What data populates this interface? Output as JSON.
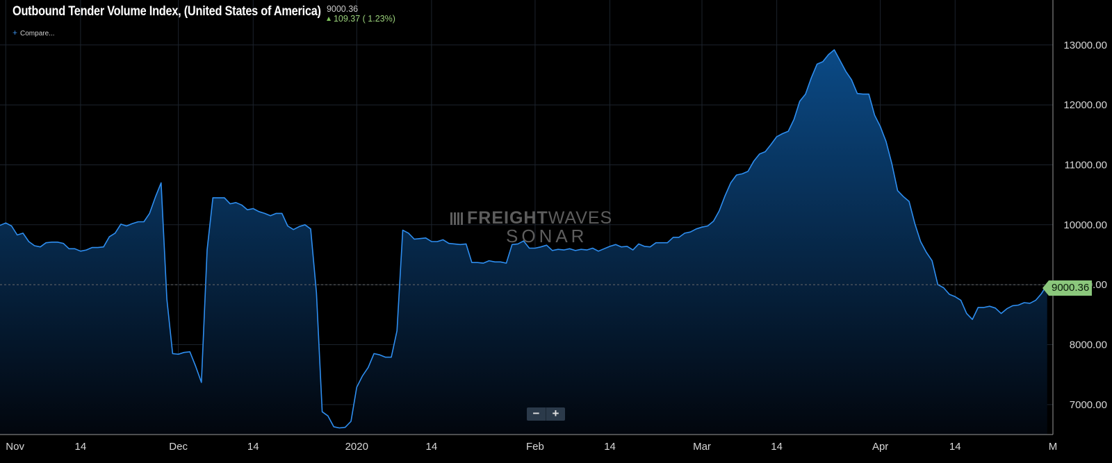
{
  "header": {
    "title": "Outbound Tender Volume Index, (United States of America)",
    "last_value": "9000.36",
    "change": "109.37 ( 1.23%)",
    "compare_label": "Compare..."
  },
  "watermark": {
    "brand_bold": "FREIGHT",
    "brand_thin": "WAVES",
    "product": "SONAR"
  },
  "price_tag": "9000.36",
  "zoom": {
    "minus": "−",
    "plus": "+"
  },
  "colors": {
    "line": "#2e8ef0",
    "fill_top": "#0b4a86",
    "fill_bottom": "#02060d",
    "grid": "#1c232c",
    "price_tag": "#8bc77c"
  },
  "chart_data": {
    "type": "area",
    "title": "Outbound Tender Volume Index, (United States of America)",
    "x_start": "2019-10-31",
    "x_end": "2020-05-01",
    "ylim": [
      6500,
      13750
    ],
    "grid": true,
    "y_ticks": [
      7000,
      8000,
      9000,
      10000,
      11000,
      12000,
      13000
    ],
    "y_tick_labels": [
      "7000.00",
      "8000.00",
      "9000.00",
      "10000.00",
      "11000.00",
      "12000.00",
      "13000.00"
    ],
    "x_ticks": [
      {
        "date": "2019-11-01",
        "label": "Nov"
      },
      {
        "date": "2019-11-14",
        "label": "14"
      },
      {
        "date": "2019-12-01",
        "label": "Dec"
      },
      {
        "date": "2019-12-14",
        "label": "14"
      },
      {
        "date": "2020-01-01",
        "label": "2020"
      },
      {
        "date": "2020-01-14",
        "label": "14"
      },
      {
        "date": "2020-02-01",
        "label": "Feb"
      },
      {
        "date": "2020-02-14",
        "label": "14"
      },
      {
        "date": "2020-03-01",
        "label": "Mar"
      },
      {
        "date": "2020-03-14",
        "label": "14"
      },
      {
        "date": "2020-04-01",
        "label": "Apr"
      },
      {
        "date": "2020-04-14",
        "label": "14"
      },
      {
        "date": "2020-05-01",
        "label": "M"
      }
    ],
    "last_value": 9000.36,
    "series": [
      {
        "x": [
          "2019-10-31",
          "2019-11-01",
          "2019-11-02",
          "2019-11-03",
          "2019-11-04",
          "2019-11-05",
          "2019-11-06",
          "2019-11-07",
          "2019-11-08",
          "2019-11-09",
          "2019-11-10",
          "2019-11-11",
          "2019-11-12",
          "2019-11-13",
          "2019-11-14",
          "2019-11-15",
          "2019-11-16",
          "2019-11-17",
          "2019-11-18",
          "2019-11-19",
          "2019-11-20",
          "2019-11-21",
          "2019-11-22",
          "2019-11-23",
          "2019-11-24",
          "2019-11-25",
          "2019-11-26",
          "2019-11-27",
          "2019-11-28",
          "2019-11-29",
          "2019-11-30",
          "2019-12-01",
          "2019-12-02",
          "2019-12-03",
          "2019-12-04",
          "2019-12-05",
          "2019-12-06",
          "2019-12-07",
          "2019-12-08",
          "2019-12-09",
          "2019-12-10",
          "2019-12-11",
          "2019-12-12",
          "2019-12-13",
          "2019-12-14",
          "2019-12-15",
          "2019-12-16",
          "2019-12-17",
          "2019-12-18",
          "2019-12-19",
          "2019-12-20",
          "2019-12-21",
          "2019-12-22",
          "2019-12-23",
          "2019-12-24",
          "2019-12-25",
          "2019-12-26",
          "2019-12-27",
          "2019-12-28",
          "2019-12-29",
          "2019-12-30",
          "2019-12-31",
          "2020-01-01",
          "2020-01-02",
          "2020-01-03",
          "2020-01-04",
          "2020-01-05",
          "2020-01-06",
          "2020-01-07",
          "2020-01-08",
          "2020-01-09",
          "2020-01-10",
          "2020-01-11",
          "2020-01-12",
          "2020-01-13",
          "2020-01-14",
          "2020-01-15",
          "2020-01-16",
          "2020-01-17",
          "2020-01-18",
          "2020-01-19",
          "2020-01-20",
          "2020-01-21",
          "2020-01-22",
          "2020-01-23",
          "2020-01-24",
          "2020-01-25",
          "2020-01-26",
          "2020-01-27",
          "2020-01-28",
          "2020-01-29",
          "2020-01-30",
          "2020-01-31",
          "2020-02-01",
          "2020-02-02",
          "2020-02-03",
          "2020-02-04",
          "2020-02-05",
          "2020-02-06",
          "2020-02-07",
          "2020-02-08",
          "2020-02-09",
          "2020-02-10",
          "2020-02-11",
          "2020-02-12",
          "2020-02-13",
          "2020-02-14",
          "2020-02-15",
          "2020-02-16",
          "2020-02-17",
          "2020-02-18",
          "2020-02-19",
          "2020-02-20",
          "2020-02-21",
          "2020-02-22",
          "2020-02-23",
          "2020-02-24",
          "2020-02-25",
          "2020-02-26",
          "2020-02-27",
          "2020-02-28",
          "2020-02-29",
          "2020-03-01",
          "2020-03-02",
          "2020-03-03",
          "2020-03-04",
          "2020-03-05",
          "2020-03-06",
          "2020-03-07",
          "2020-03-08",
          "2020-03-09",
          "2020-03-10",
          "2020-03-11",
          "2020-03-12",
          "2020-03-13",
          "2020-03-14",
          "2020-03-15",
          "2020-03-16",
          "2020-03-17",
          "2020-03-18",
          "2020-03-19",
          "2020-03-20",
          "2020-03-21",
          "2020-03-22",
          "2020-03-23",
          "2020-03-24",
          "2020-03-25",
          "2020-03-26",
          "2020-03-27",
          "2020-03-28",
          "2020-03-29",
          "2020-03-30",
          "2020-03-31",
          "2020-04-01",
          "2020-04-02",
          "2020-04-03",
          "2020-04-04",
          "2020-04-05",
          "2020-04-06",
          "2020-04-07",
          "2020-04-08",
          "2020-04-09",
          "2020-04-10",
          "2020-04-11",
          "2020-04-12",
          "2020-04-13",
          "2020-04-14",
          "2020-04-15",
          "2020-04-16",
          "2020-04-17",
          "2020-04-18",
          "2020-04-19",
          "2020-04-20",
          "2020-04-21",
          "2020-04-22",
          "2020-04-23",
          "2020-04-24",
          "2020-04-25",
          "2020-04-26",
          "2020-04-27",
          "2020-04-28",
          "2020-04-29",
          "2020-04-30"
        ],
        "y": [
          9990,
          10030,
          9980,
          9830,
          9860,
          9720,
          9650,
          9630,
          9700,
          9710,
          9710,
          9690,
          9600,
          9600,
          9560,
          9580,
          9620,
          9620,
          9630,
          9800,
          9860,
          10010,
          9980,
          10020,
          10050,
          10050,
          10190,
          10460,
          10700,
          8760,
          7850,
          7840,
          7870,
          7880,
          7640,
          7370,
          9580,
          10450,
          10450,
          10450,
          10350,
          10370,
          10330,
          10250,
          10270,
          10220,
          10190,
          10150,
          10190,
          10190,
          9980,
          9920,
          9970,
          10000,
          9930,
          8870,
          6880,
          6810,
          6630,
          6610,
          6620,
          6720,
          7290,
          7480,
          7620,
          7850,
          7830,
          7790,
          7790,
          8230,
          9910,
          9860,
          9760,
          9770,
          9780,
          9720,
          9720,
          9750,
          9690,
          9680,
          9670,
          9680,
          9370,
          9370,
          9360,
          9400,
          9380,
          9380,
          9360,
          9670,
          9680,
          9730,
          9610,
          9610,
          9630,
          9660,
          9570,
          9590,
          9580,
          9600,
          9570,
          9590,
          9580,
          9610,
          9560,
          9600,
          9640,
          9670,
          9630,
          9640,
          9580,
          9680,
          9640,
          9630,
          9700,
          9700,
          9700,
          9790,
          9790,
          9860,
          9880,
          9930,
          9960,
          9980,
          10060,
          10230,
          10480,
          10700,
          10830,
          10850,
          10890,
          11060,
          11180,
          11220,
          11340,
          11470,
          11520,
          11560,
          11760,
          12060,
          12180,
          12450,
          12680,
          12720,
          12840,
          12920,
          12740,
          12560,
          12420,
          12190,
          12180,
          12180,
          11830,
          11640,
          11390,
          11020,
          10570,
          10470,
          10390,
          10020,
          9720,
          9540,
          9400,
          9000,
          8950,
          8840,
          8800,
          8740,
          8520,
          8420,
          8620,
          8620,
          8640,
          8610,
          8520,
          8600,
          8650,
          8660,
          8700,
          8690,
          8740,
          8850,
          9000.36
        ]
      }
    ]
  }
}
